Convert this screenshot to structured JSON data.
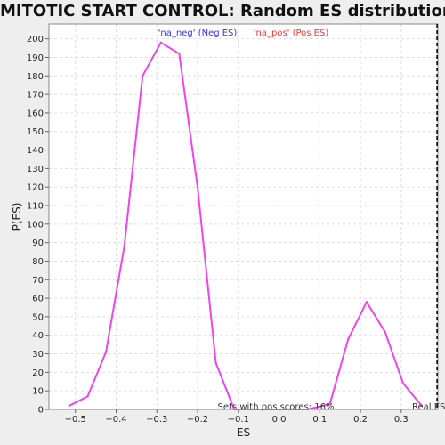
{
  "chart_data": {
    "type": "line",
    "title": "MITOTIC START CONTROL: Random ES distribution",
    "xlabel": "ES",
    "ylabel": "P(ES)",
    "xlim": [
      -0.565,
      0.39
    ],
    "ylim": [
      0,
      208
    ],
    "x_ticks": [
      -0.5,
      -0.4,
      -0.3,
      -0.2,
      -0.1,
      0.0,
      0.1,
      0.2,
      0.3
    ],
    "x_tick_labels": [
      "−0.5",
      "−0.4",
      "−0.3",
      "−0.2",
      "−0.1",
      "0.0",
      "0.1",
      "0.2",
      "0.3"
    ],
    "y_ticks": [
      0,
      10,
      20,
      30,
      40,
      50,
      60,
      70,
      80,
      90,
      100,
      110,
      120,
      130,
      140,
      150,
      160,
      170,
      180,
      190,
      200
    ],
    "grid": true,
    "legend_position": "top",
    "legend": [
      {
        "label": "'na_neg' (Neg ES)",
        "color": "#3333ff"
      },
      {
        "label": "'na_pos' (Pos ES)",
        "color": "#ff3333"
      }
    ],
    "series": [
      {
        "color": "#ee44ee",
        "x": [
          -0.515,
          -0.47,
          -0.425,
          -0.38,
          -0.335,
          -0.29,
          -0.245,
          -0.2,
          -0.155,
          -0.11,
          -0.065,
          -0.02,
          0.025,
          0.07,
          0.125,
          0.17,
          0.215,
          0.26,
          0.305,
          0.35
        ],
        "y": [
          2,
          7,
          31,
          88,
          180,
          198,
          192,
          120,
          25,
          0,
          0,
          0,
          0,
          0,
          3,
          38,
          58,
          42,
          14,
          2
        ]
      }
    ],
    "annotations": {
      "sets_text": "Sets with pos scores: 16%",
      "real_es_label": "Real ES",
      "real_es_x": 0.388
    }
  }
}
